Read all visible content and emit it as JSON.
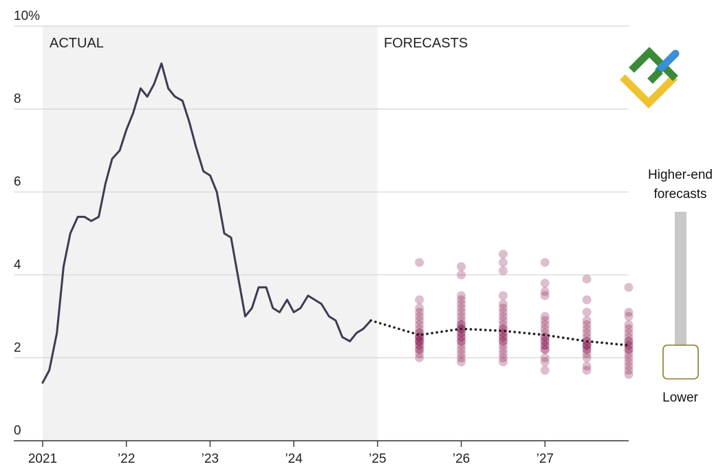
{
  "chart_data": {
    "type": "line",
    "x_axis": {
      "ticks": [
        {
          "x": 2021,
          "label": "2021"
        },
        {
          "x": 2022,
          "label": "’22"
        },
        {
          "x": 2023,
          "label": "’23"
        },
        {
          "x": 2024,
          "label": "’24"
        },
        {
          "x": 2025,
          "label": "’25"
        },
        {
          "x": 2026,
          "label": "’26"
        },
        {
          "x": 2027,
          "label": "’27"
        }
      ],
      "range": [
        2021,
        2028
      ]
    },
    "y_axis": {
      "range": [
        0,
        10
      ],
      "ticks": [
        {
          "y": 0,
          "label": "0"
        },
        {
          "y": 2,
          "label": "2"
        },
        {
          "y": 4,
          "label": "4"
        },
        {
          "y": 6,
          "label": "6"
        },
        {
          "y": 8,
          "label": "8"
        },
        {
          "y": 10,
          "label": "10%"
        }
      ],
      "grid": true
    },
    "regions": [
      {
        "label": "ACTUAL",
        "x_start": 2021,
        "x_end": 2025,
        "color": "#f2f2f2"
      },
      {
        "label": "FORECASTS",
        "x_start": 2025,
        "x_end": 2028,
        "color": "#ffffff"
      }
    ],
    "actual_series": {
      "color": "#3a3d52",
      "points": [
        [
          2021.0,
          1.4
        ],
        [
          2021.08,
          1.7
        ],
        [
          2021.17,
          2.6
        ],
        [
          2021.25,
          4.2
        ],
        [
          2021.33,
          5.0
        ],
        [
          2021.42,
          5.4
        ],
        [
          2021.5,
          5.4
        ],
        [
          2021.58,
          5.3
        ],
        [
          2021.67,
          5.4
        ],
        [
          2021.75,
          6.2
        ],
        [
          2021.83,
          6.8
        ],
        [
          2021.92,
          7.0
        ],
        [
          2022.0,
          7.5
        ],
        [
          2022.08,
          7.9
        ],
        [
          2022.17,
          8.5
        ],
        [
          2022.25,
          8.3
        ],
        [
          2022.33,
          8.6
        ],
        [
          2022.42,
          9.1
        ],
        [
          2022.5,
          8.5
        ],
        [
          2022.58,
          8.3
        ],
        [
          2022.67,
          8.2
        ],
        [
          2022.75,
          7.7
        ],
        [
          2022.83,
          7.1
        ],
        [
          2022.92,
          6.5
        ],
        [
          2023.0,
          6.4
        ],
        [
          2023.08,
          6.0
        ],
        [
          2023.17,
          5.0
        ],
        [
          2023.25,
          4.9
        ],
        [
          2023.33,
          4.0
        ],
        [
          2023.42,
          3.0
        ],
        [
          2023.5,
          3.2
        ],
        [
          2023.58,
          3.7
        ],
        [
          2023.67,
          3.7
        ],
        [
          2023.75,
          3.2
        ],
        [
          2023.83,
          3.1
        ],
        [
          2023.92,
          3.4
        ],
        [
          2024.0,
          3.1
        ],
        [
          2024.08,
          3.2
        ],
        [
          2024.17,
          3.5
        ],
        [
          2024.25,
          3.4
        ],
        [
          2024.33,
          3.3
        ],
        [
          2024.42,
          3.0
        ],
        [
          2024.5,
          2.9
        ],
        [
          2024.58,
          2.5
        ],
        [
          2024.67,
          2.4
        ],
        [
          2024.75,
          2.6
        ],
        [
          2024.83,
          2.7
        ],
        [
          2024.92,
          2.9
        ]
      ]
    },
    "forecast_median": {
      "color": "#222222",
      "style": "dotted",
      "points": [
        [
          2024.92,
          2.9
        ],
        [
          2025.5,
          2.55
        ],
        [
          2026.0,
          2.7
        ],
        [
          2026.5,
          2.65
        ],
        [
          2027.0,
          2.55
        ],
        [
          2027.5,
          2.4
        ],
        [
          2028.0,
          2.3
        ]
      ]
    },
    "forecast_dots": [
      {
        "x": 2025.5,
        "values": [
          4.3,
          3.4,
          3.2,
          3.1,
          3.0,
          2.9,
          2.8,
          2.7,
          2.6,
          2.6,
          2.5,
          2.5,
          2.5,
          2.4,
          2.4,
          2.4,
          2.3,
          2.3,
          2.2,
          2.2,
          2.1,
          2.0
        ]
      },
      {
        "x": 2026.0,
        "values": [
          4.2,
          4.0,
          3.5,
          3.4,
          3.3,
          3.2,
          3.1,
          3.0,
          2.9,
          2.8,
          2.8,
          2.7,
          2.7,
          2.7,
          2.6,
          2.6,
          2.5,
          2.5,
          2.4,
          2.4,
          2.3,
          2.2,
          2.1,
          2.0,
          1.9
        ]
      },
      {
        "x": 2026.5,
        "values": [
          4.5,
          4.3,
          4.1,
          3.5,
          3.3,
          3.2,
          3.1,
          3.0,
          2.9,
          2.8,
          2.7,
          2.7,
          2.6,
          2.6,
          2.5,
          2.5,
          2.4,
          2.4,
          2.3,
          2.2,
          2.1,
          2.0,
          1.9
        ]
      },
      {
        "x": 2027.0,
        "values": [
          4.3,
          3.8,
          3.6,
          3.5,
          3.0,
          2.9,
          2.8,
          2.7,
          2.6,
          2.5,
          2.5,
          2.4,
          2.4,
          2.3,
          2.3,
          2.2,
          2.2,
          2.0,
          1.9,
          1.7
        ]
      },
      {
        "x": 2027.5,
        "values": [
          3.9,
          3.4,
          3.1,
          2.9,
          2.8,
          2.7,
          2.6,
          2.5,
          2.4,
          2.4,
          2.3,
          2.3,
          2.3,
          2.2,
          2.2,
          2.1,
          2.0,
          1.8,
          1.7
        ]
      },
      {
        "x": 2028.0,
        "values": [
          3.7,
          3.1,
          3.0,
          2.8,
          2.7,
          2.6,
          2.5,
          2.4,
          2.4,
          2.3,
          2.3,
          2.2,
          2.2,
          2.1,
          2.0,
          1.9,
          1.8,
          1.7,
          1.6
        ]
      }
    ],
    "dot_color": "#8a1650",
    "legend": {
      "top_label_line1": "Higher-end",
      "top_label_line2": "forecasts",
      "bottom_label": "Lower",
      "placement": "right"
    }
  },
  "logo": {
    "icon": "brand-logo-icon",
    "colors": {
      "green": "#3a8a3a",
      "blue": "#3b8fd6",
      "yellow": "#f0c230"
    }
  }
}
